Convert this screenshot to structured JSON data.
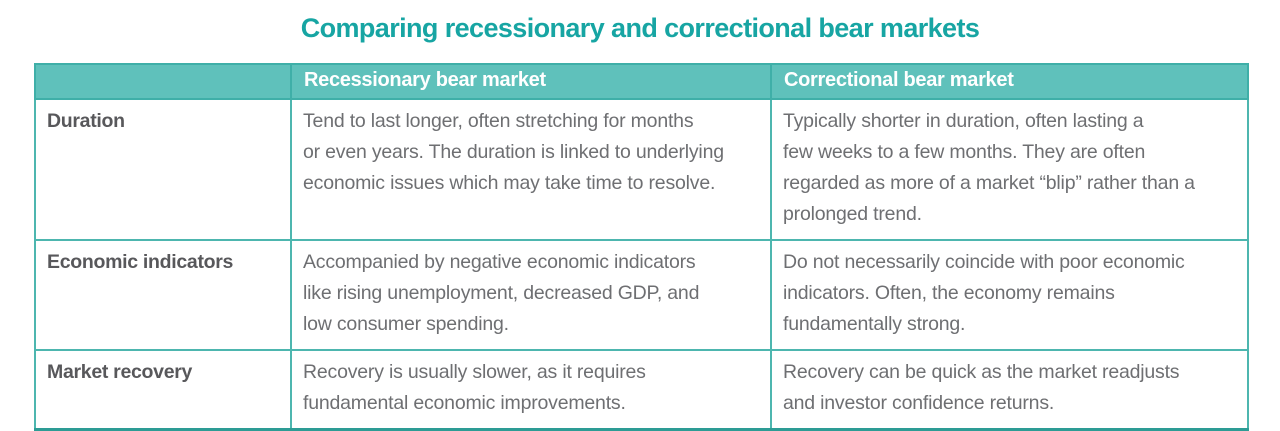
{
  "title": "Comparing recessionary and correctional bear markets",
  "colors": {
    "title_text": "#17a5a3",
    "header_background": "#5fc1bb",
    "header_text": "#ffffff",
    "grid_border": "#4db6af",
    "outer_bottom_border": "#2d9c95",
    "body_text": "#6e6f72",
    "label_text": "#58585b"
  },
  "table": {
    "columns": [
      "",
      "Recessionary bear market",
      "Correctional bear market"
    ],
    "rows": [
      {
        "label": "Duration",
        "recessionary": "Tend to last longer, often stretching for months\nor even years. The duration is linked to underlying\neconomic issues which may take time to resolve.",
        "correctional": "Typically shorter in duration, often lasting a\nfew weeks to a few months. They are often\nregarded as more of a market “blip” rather than a\nprolonged trend."
      },
      {
        "label": "Economic indicators",
        "recessionary": "Accompanied by negative economic indicators\nlike rising unemployment, decreased GDP, and\nlow consumer spending.",
        "correctional": "Do not necessarily coincide with poor economic\nindicators. Often, the economy remains\nfundamentally strong."
      },
      {
        "label": "Market recovery",
        "recessionary": "Recovery is usually slower, as it requires\nfundamental economic improvements.",
        "correctional": "Recovery can be quick as the market readjusts\nand investor confidence returns."
      }
    ]
  }
}
